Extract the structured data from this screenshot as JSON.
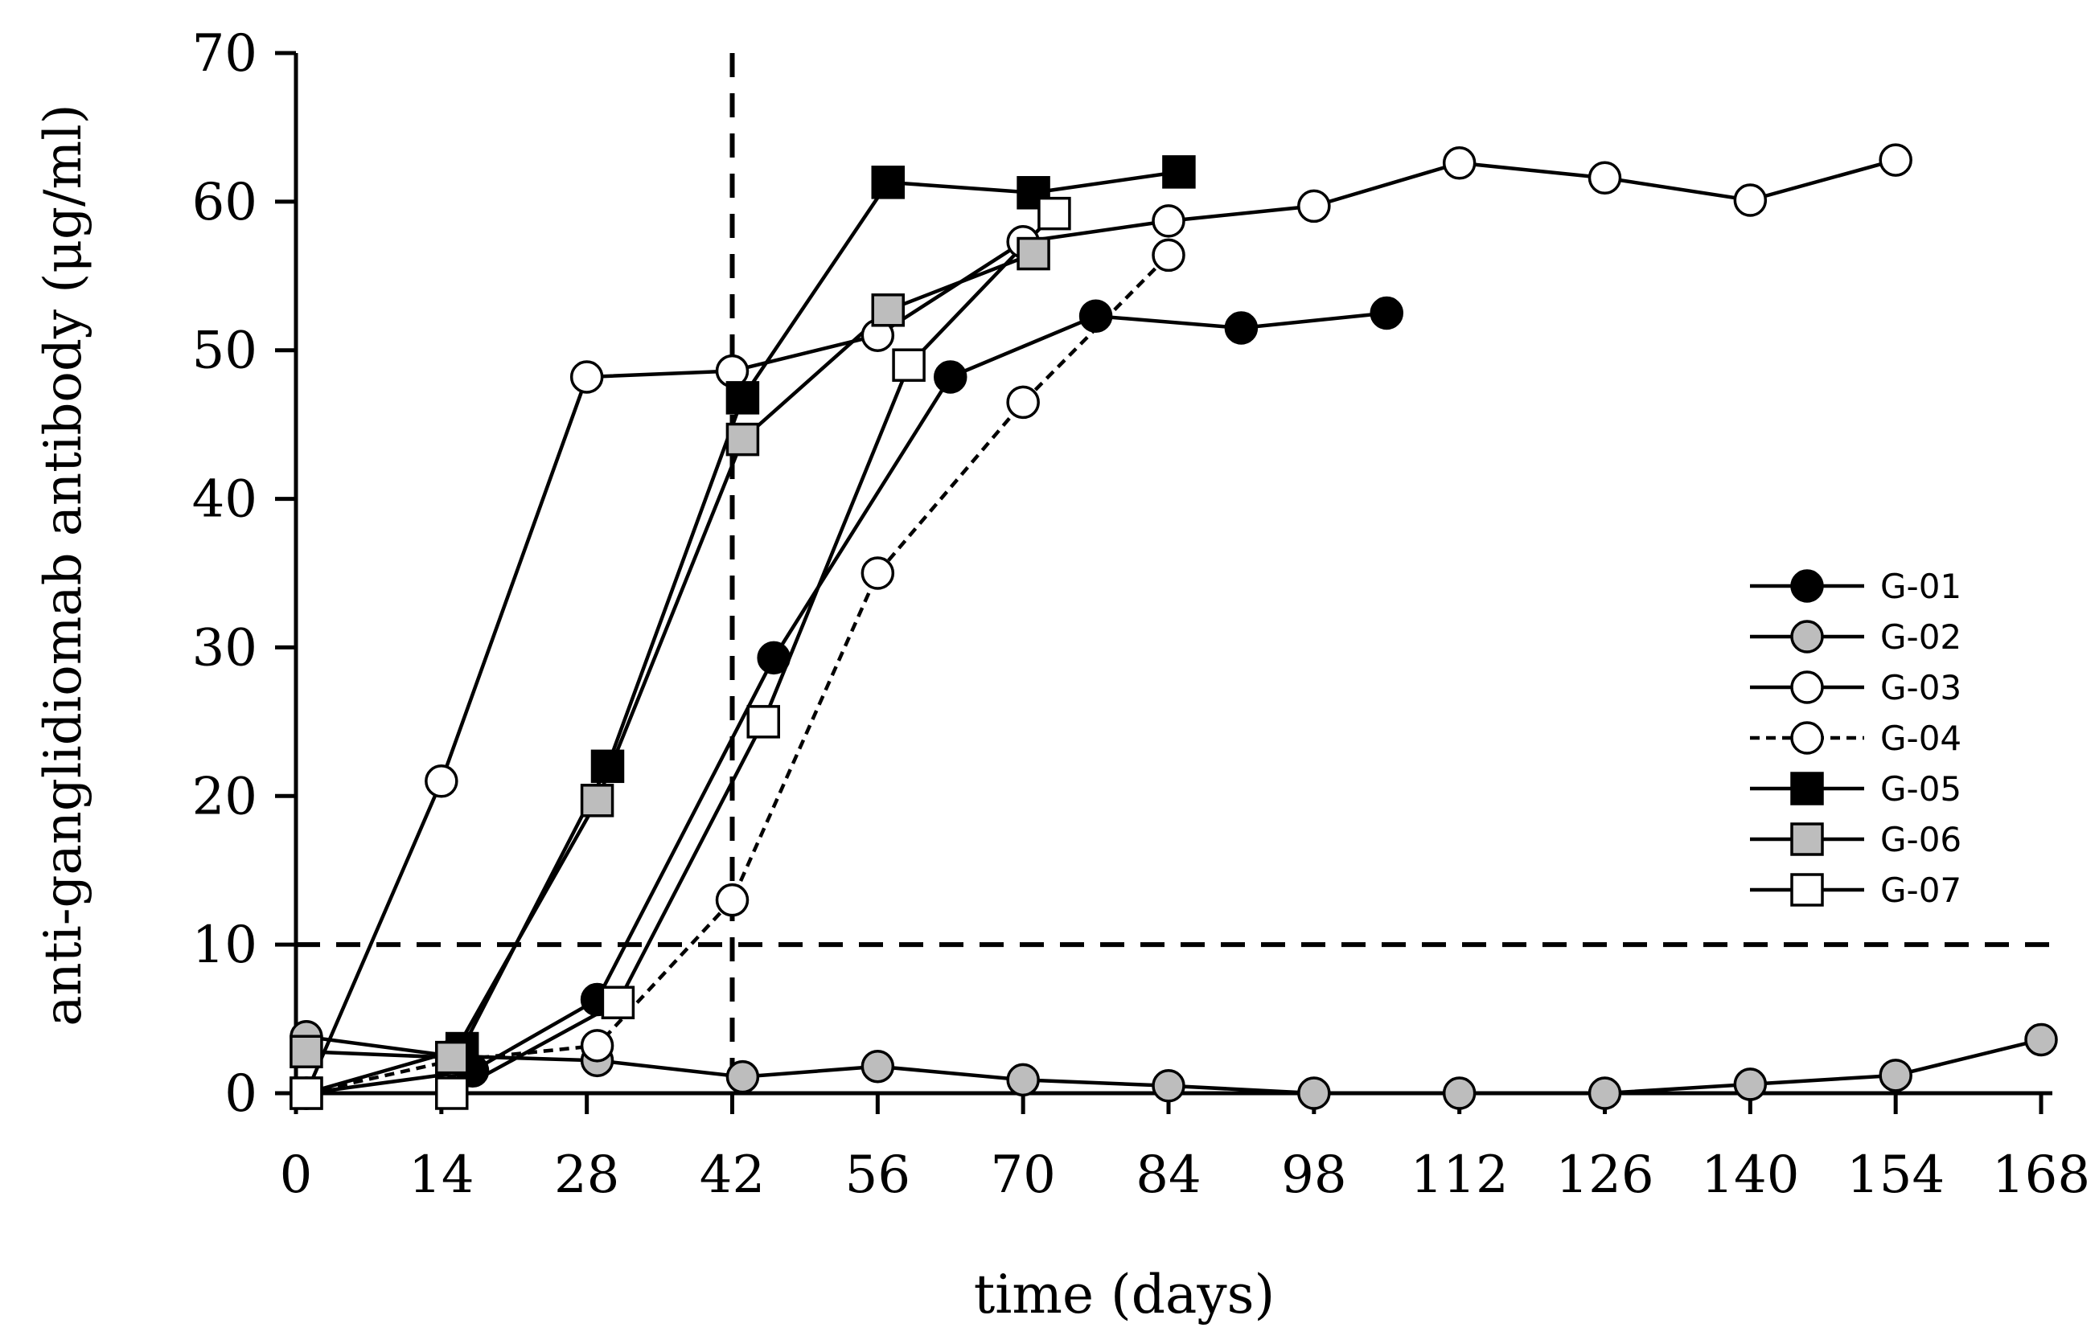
{
  "chart_data": {
    "type": "line",
    "title": "",
    "xlabel": "time (days)",
    "ylabel": "anti-ganglidiomab antibody (μg/ml)",
    "xlim": [
      0,
      168
    ],
    "ylim": [
      0,
      70
    ],
    "xticks": [
      0,
      14,
      28,
      42,
      56,
      70,
      84,
      98,
      112,
      126,
      140,
      154,
      168
    ],
    "yticks": [
      0,
      10,
      20,
      30,
      40,
      50,
      60,
      70
    ],
    "grid": false,
    "legend_position": "right",
    "reference_lines": [
      {
        "orientation": "horizontal",
        "value": 10,
        "style": "dashed"
      },
      {
        "orientation": "vertical",
        "value": 42,
        "style": "dashed"
      }
    ],
    "series": [
      {
        "name": "G-01",
        "marker": "circle",
        "fill": "#000000",
        "line": "solid",
        "x": [
          1,
          17,
          29,
          46,
          63,
          77,
          91,
          105
        ],
        "y": [
          0,
          1.5,
          6.3,
          29.3,
          48.2,
          52.3,
          51.5,
          52.5
        ]
      },
      {
        "name": "G-02",
        "marker": "circle",
        "fill": "#bdbdbd",
        "line": "solid",
        "x": [
          1,
          15,
          29,
          43,
          56,
          70,
          84,
          98,
          112,
          126,
          140,
          154,
          168
        ],
        "y": [
          3.8,
          2.5,
          2.2,
          1.1,
          1.8,
          0.9,
          0.5,
          0,
          0,
          0,
          0.6,
          1.2,
          3.6
        ]
      },
      {
        "name": "G-03",
        "marker": "circle",
        "fill": "#ffffff",
        "line": "solid",
        "x": [
          1,
          14,
          28,
          42,
          56,
          70,
          84,
          98,
          112,
          126,
          140,
          154
        ],
        "y": [
          0,
          21,
          48.2,
          48.6,
          51,
          57.3,
          58.7,
          59.7,
          62.6,
          61.6,
          60.1,
          62.8
        ]
      },
      {
        "name": "G-04",
        "marker": "circle",
        "fill": "#ffffff",
        "line": "dashed",
        "x": [
          1,
          15,
          29,
          42,
          56,
          70,
          84
        ],
        "y": [
          0,
          2.2,
          3.2,
          13,
          35,
          46.5,
          56.4
        ]
      },
      {
        "name": "G-05",
        "marker": "square",
        "fill": "#000000",
        "line": "solid",
        "x": [
          1,
          16,
          30,
          43,
          57,
          71,
          85
        ],
        "y": [
          0,
          3,
          22,
          46.8,
          61.3,
          60.6,
          62
        ]
      },
      {
        "name": "G-06",
        "marker": "square",
        "fill": "#bdbdbd",
        "line": "solid",
        "x": [
          1,
          15,
          29,
          43,
          57,
          71
        ],
        "y": [
          2.8,
          2.4,
          19.7,
          44,
          52.7,
          56.5
        ]
      },
      {
        "name": "G-07",
        "marker": "square",
        "fill": "#ffffff",
        "line": "solid",
        "x": [
          1,
          15,
          31,
          45,
          59,
          73
        ],
        "y": [
          0,
          0,
          6.1,
          25,
          49,
          59.2
        ]
      }
    ]
  }
}
